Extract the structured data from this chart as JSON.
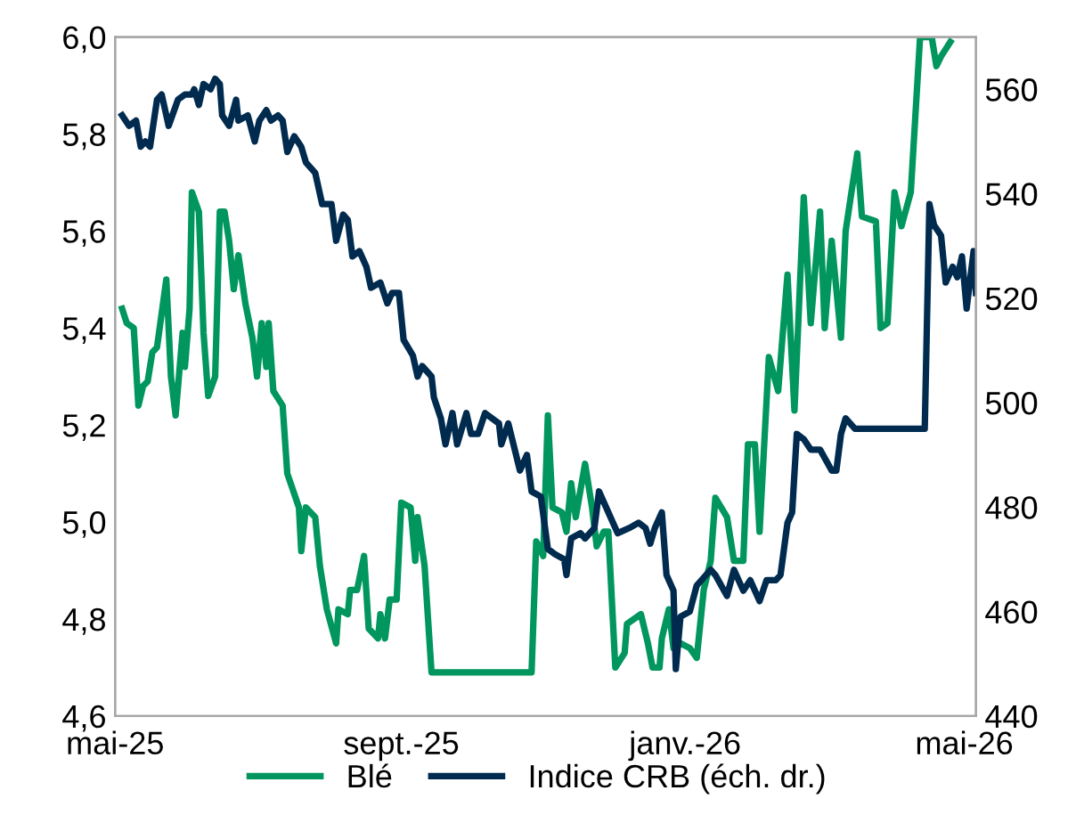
{
  "chart_data": {
    "type": "line",
    "xlim": [
      "2025-05-01",
      "2026-05-06"
    ],
    "xticks": [
      {
        "value": "2025-05-01",
        "label": "mai-25"
      },
      {
        "value": "2025-09-01",
        "label": "sept.-25"
      },
      {
        "value": "2026-01-01",
        "label": "janv.-26"
      },
      {
        "value": "2026-05-01",
        "label": "mai-26"
      }
    ],
    "ylim": [
      4.6,
      6.0
    ],
    "yticks": [
      {
        "value": 4.6,
        "label": "4,6"
      },
      {
        "value": 4.8,
        "label": "4,8"
      },
      {
        "value": 5.0,
        "label": "5,0"
      },
      {
        "value": 5.2,
        "label": "5,2"
      },
      {
        "value": 5.4,
        "label": "5,4"
      },
      {
        "value": 5.6,
        "label": "5,6"
      },
      {
        "value": 5.8,
        "label": "5,8"
      },
      {
        "value": 6.0,
        "label": "6,0"
      }
    ],
    "y2lim": [
      440,
      570
    ],
    "y2ticks": [
      440,
      460,
      480,
      500,
      520,
      540,
      560
    ],
    "grid": false,
    "legend": "bottom",
    "series": [
      {
        "name": "Blé",
        "color": "#00965e",
        "x": [
          "2025-05-04",
          "2025-05-06",
          "2025-05-09",
          "2025-05-11",
          "2025-05-13",
          "2025-05-15",
          "2025-05-17",
          "2025-05-19",
          "2025-05-23",
          "2025-05-25",
          "2025-05-27",
          "2025-05-30",
          "2025-05-31",
          "2025-06-02",
          "2025-06-03",
          "2025-06-06",
          "2025-06-08",
          "2025-06-10",
          "2025-06-13",
          "2025-06-15",
          "2025-06-17",
          "2025-06-19",
          "2025-06-21",
          "2025-06-23",
          "2025-06-26",
          "2025-06-29",
          "2025-07-01",
          "2025-07-03",
          "2025-07-05",
          "2025-07-06",
          "2025-07-08",
          "2025-07-12",
          "2025-07-14",
          "2025-07-19",
          "2025-07-20",
          "2025-07-22",
          "2025-07-26",
          "2025-07-28",
          "2025-07-31",
          "2025-08-04",
          "2025-08-05",
          "2025-08-09",
          "2025-08-10",
          "2025-08-13",
          "2025-08-16",
          "2025-08-18",
          "2025-08-22",
          "2025-08-23",
          "2025-08-25",
          "2025-08-27",
          "2025-08-30",
          "2025-09-01",
          "2025-09-05",
          "2025-09-07",
          "2025-09-08",
          "2025-09-11",
          "2025-09-14",
          "2025-10-27",
          "2025-10-29",
          "2025-11-01",
          "2025-11-03",
          "2025-11-05",
          "2025-11-09",
          "2025-11-11",
          "2025-11-13",
          "2025-11-15",
          "2025-11-19",
          "2025-11-22",
          "2025-11-24",
          "2025-11-27",
          "2025-11-29",
          "2025-12-02",
          "2025-12-06",
          "2025-12-07",
          "2025-12-13",
          "2025-12-16",
          "2025-12-18",
          "2025-12-21",
          "2025-12-22",
          "2025-12-25",
          "2025-12-27",
          "2025-12-30",
          "2026-01-03",
          "2026-01-06",
          "2026-01-09",
          "2026-01-12",
          "2026-01-14",
          "2026-01-19",
          "2026-01-22",
          "2026-01-26",
          "2026-01-28",
          "2026-01-31",
          "2026-02-02",
          "2026-02-06",
          "2026-02-10",
          "2026-02-14",
          "2026-02-17",
          "2026-02-21",
          "2026-02-24",
          "2026-02-28",
          "2026-03-02",
          "2026-03-05",
          "2026-03-09",
          "2026-03-11",
          "2026-03-16",
          "2026-03-18",
          "2026-03-24",
          "2026-03-26",
          "2026-03-29",
          "2026-04-01",
          "2026-04-04",
          "2026-04-08",
          "2026-04-12",
          "2026-04-17",
          "2026-04-19",
          "2026-04-21",
          "2026-04-25"
        ],
        "values": [
          5.44,
          5.41,
          5.4,
          5.24,
          5.28,
          5.29,
          5.35,
          5.36,
          5.5,
          5.3,
          5.22,
          5.39,
          5.32,
          5.44,
          5.68,
          5.64,
          5.39,
          5.26,
          5.3,
          5.64,
          5.64,
          5.58,
          5.48,
          5.55,
          5.45,
          5.38,
          5.3,
          5.41,
          5.32,
          5.41,
          5.27,
          5.24,
          5.1,
          5.03,
          4.94,
          5.03,
          5.01,
          4.91,
          4.82,
          4.75,
          4.82,
          4.81,
          4.86,
          4.86,
          4.93,
          4.78,
          4.76,
          4.81,
          4.76,
          4.84,
          4.84,
          5.04,
          5.03,
          4.92,
          5.01,
          4.91,
          4.69,
          4.69,
          4.96,
          4.93,
          5.22,
          5.03,
          5.02,
          4.98,
          5.08,
          5.01,
          5.12,
          5.03,
          4.95,
          4.98,
          4.98,
          4.7,
          4.73,
          4.79,
          4.81,
          4.75,
          4.7,
          4.7,
          4.76,
          4.82,
          4.74,
          4.75,
          4.74,
          4.72,
          4.86,
          4.92,
          5.05,
          5.01,
          4.92,
          4.92,
          5.16,
          5.16,
          4.98,
          5.34,
          5.27,
          5.51,
          5.23,
          5.67,
          5.41,
          5.64,
          5.4,
          5.58,
          5.38,
          5.6,
          5.76,
          5.63,
          5.62,
          5.4,
          5.41,
          5.68,
          5.61,
          5.68,
          6.0,
          6.0,
          5.94,
          5.96,
          5.99
        ]
      },
      {
        "name": "Indice CRB (éch. dr.)",
        "color": "#002b4f",
        "axis": "y2",
        "x": [
          "2025-05-04",
          "2025-05-07",
          "2025-05-10",
          "2025-05-12",
          "2025-05-14",
          "2025-05-16",
          "2025-05-19",
          "2025-05-21",
          "2025-05-24",
          "2025-05-28",
          "2025-05-31",
          "2025-06-03",
          "2025-06-04",
          "2025-06-06",
          "2025-06-08",
          "2025-06-11",
          "2025-06-13",
          "2025-06-15",
          "2025-06-16",
          "2025-06-19",
          "2025-06-22",
          "2025-06-23",
          "2025-06-27",
          "2025-06-30",
          "2025-07-02",
          "2025-07-05",
          "2025-07-07",
          "2025-07-10",
          "2025-07-12",
          "2025-07-14",
          "2025-07-17",
          "2025-07-20",
          "2025-07-22",
          "2025-07-26",
          "2025-07-29",
          "2025-08-02",
          "2025-08-04",
          "2025-08-07",
          "2025-08-09",
          "2025-08-11",
          "2025-08-14",
          "2025-08-17",
          "2025-08-19",
          "2025-08-23",
          "2025-08-26",
          "2025-08-28",
          "2025-08-31",
          "2025-09-02",
          "2025-09-06",
          "2025-09-08",
          "2025-09-10",
          "2025-09-14",
          "2025-09-15",
          "2025-09-18",
          "2025-09-20",
          "2025-09-23",
          "2025-09-25",
          "2025-09-29",
          "2025-10-01",
          "2025-10-04",
          "2025-10-07",
          "2025-10-13",
          "2025-10-14",
          "2025-10-17",
          "2025-10-22",
          "2025-10-25",
          "2025-10-27",
          "2025-10-31",
          "2025-11-03",
          "2025-11-06",
          "2025-11-10",
          "2025-11-11",
          "2025-11-13",
          "2025-11-17",
          "2025-11-19",
          "2025-11-23",
          "2025-11-25",
          "2025-11-29",
          "2025-12-03",
          "2025-12-08",
          "2025-12-12",
          "2025-12-15",
          "2025-12-17",
          "2025-12-19",
          "2025-12-22",
          "2025-12-24",
          "2025-12-27",
          "2025-12-28",
          "2025-12-30",
          "2026-01-03",
          "2026-01-06",
          "2026-01-12",
          "2026-01-14",
          "2026-01-19",
          "2026-01-22",
          "2026-01-26",
          "2026-01-29",
          "2026-02-02",
          "2026-02-05",
          "2026-02-09",
          "2026-02-11",
          "2026-02-14",
          "2026-02-16",
          "2026-02-18",
          "2026-02-21",
          "2026-02-24",
          "2026-02-28",
          "2026-03-05",
          "2026-03-07",
          "2026-03-09",
          "2026-03-11",
          "2026-03-15",
          "2026-04-14",
          "2026-04-16",
          "2026-04-18",
          "2026-04-21",
          "2026-04-23",
          "2026-04-26",
          "2026-04-28",
          "2026-04-30",
          "2026-05-02",
          "2026-05-05",
          "2026-05-06"
        ],
        "values": [
          555,
          553,
          554,
          549,
          550,
          549,
          558,
          559,
          553,
          558,
          559,
          559,
          560,
          557,
          561,
          560,
          562,
          561,
          555,
          553,
          558,
          554,
          555,
          550,
          554,
          556,
          554,
          555,
          554,
          548,
          551,
          549,
          546,
          544,
          538,
          538,
          531,
          536,
          535,
          528,
          529,
          526,
          522,
          523,
          519,
          521,
          521,
          512,
          509,
          505,
          507,
          505,
          501,
          497,
          492,
          498,
          492,
          498,
          494,
          494,
          498,
          496,
          492,
          496,
          487,
          490,
          483,
          482,
          472,
          471,
          470,
          467,
          474,
          475,
          474,
          476,
          483,
          479,
          475,
          476,
          477,
          476,
          473,
          476,
          479,
          467,
          464,
          449,
          459,
          460,
          465,
          468,
          467,
          463,
          468,
          464,
          466,
          462,
          466,
          466,
          467,
          477,
          479,
          494,
          493,
          491,
          491,
          487,
          487,
          494,
          497,
          495,
          495,
          538,
          534,
          532,
          523,
          526,
          524,
          528,
          518,
          529,
          521
        ]
      }
    ]
  }
}
